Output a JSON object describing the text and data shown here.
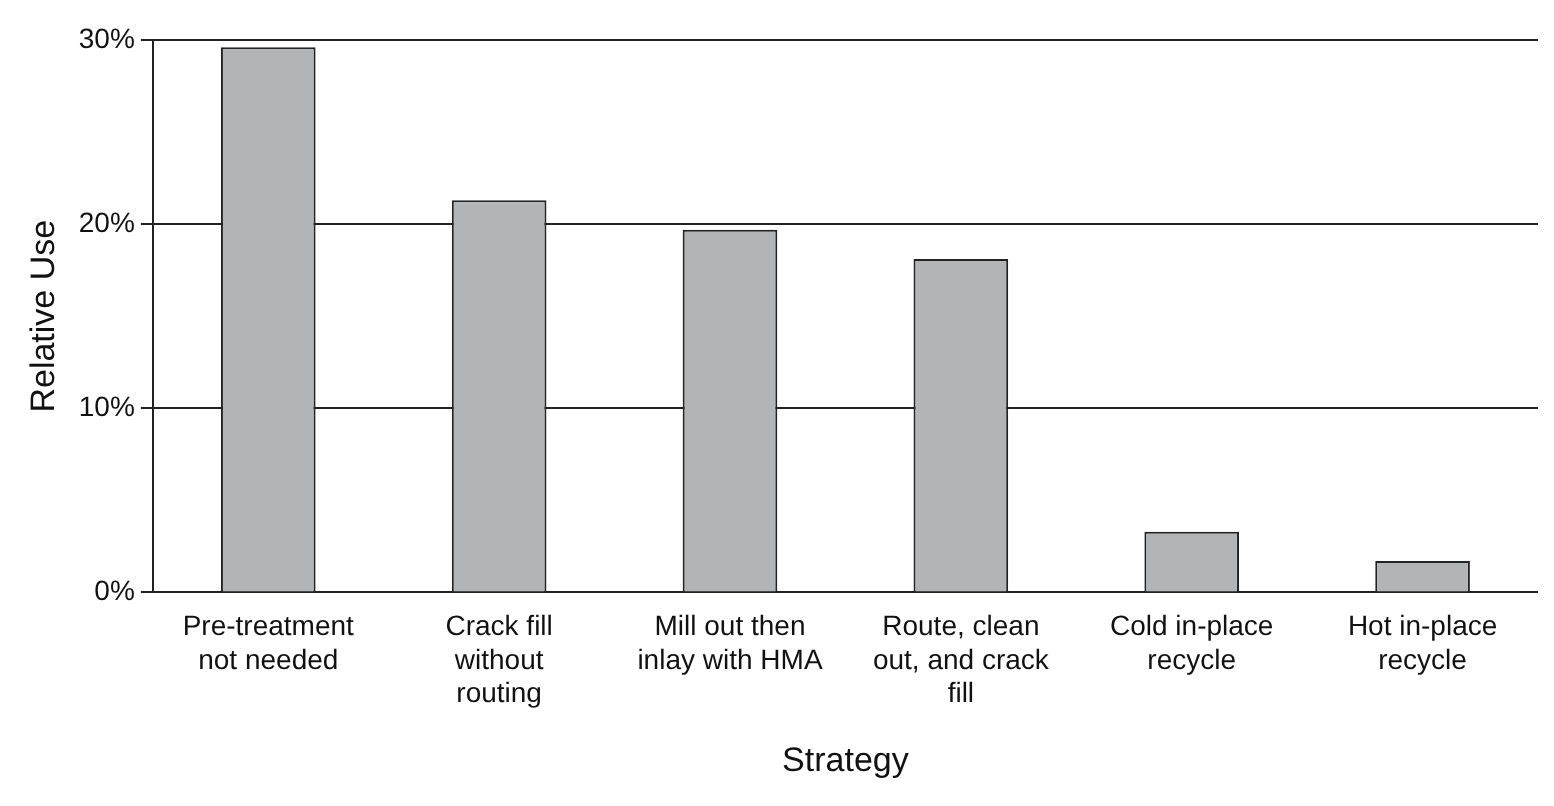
{
  "chart_data": {
    "type": "bar",
    "xlabel": "Strategy",
    "ylabel": "Relative Use",
    "categories": [
      "Pre-treatment not needed",
      "Crack fill without routing",
      "Mill out then inlay with HMA",
      "Route, clean out, and crack fill",
      "Cold in-place recycle",
      "Hot in-place recycle"
    ],
    "values": [
      29.6,
      21.3,
      19.7,
      18.1,
      3.3,
      1.7
    ],
    "color": "#b3b4b6",
    "ylim": [
      0,
      30
    ],
    "yticks": [
      {
        "value": 0,
        "label": "0%"
      },
      {
        "value": 10,
        "label": "10%"
      },
      {
        "value": 20,
        "label": "20%"
      },
      {
        "value": 30,
        "label": "30%"
      }
    ],
    "grid": "y",
    "legend": false
  }
}
